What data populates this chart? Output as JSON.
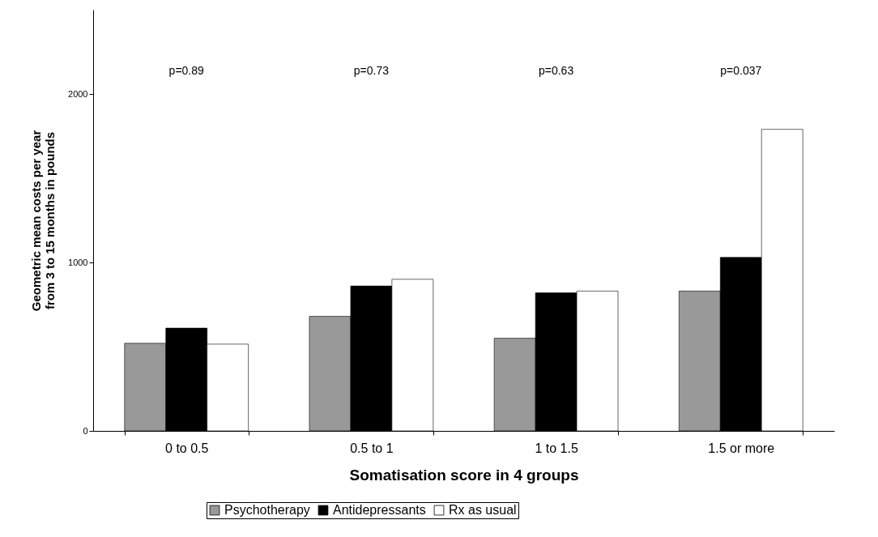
{
  "chart_data": {
    "type": "bar",
    "xlabel": "Somatisation score in 4 groups",
    "ylabel": "Geometric mean costs per year\nfrom 3 to 15 months in pounds",
    "categories": [
      "0 to 0.5",
      "0.5 to 1",
      "1 to 1.5",
      "1.5 or more"
    ],
    "series": [
      {
        "name": "Psychotherapy",
        "color": "#999999",
        "values": [
          520,
          680,
          550,
          830
        ]
      },
      {
        "name": "Antidepressants",
        "color": "#000000",
        "values": [
          610,
          860,
          820,
          1030
        ]
      },
      {
        "name": "Rx as usual",
        "color": "#ffffff",
        "values": [
          515,
          900,
          830,
          1790
        ]
      }
    ],
    "ylim": [
      0,
      2500
    ],
    "yticks": [
      0,
      1000,
      2000
    ],
    "grid": false,
    "legend": "bottom",
    "annotations": [
      "p=0.89",
      "p=0.73",
      "p=0.63",
      "p=0.037"
    ]
  }
}
